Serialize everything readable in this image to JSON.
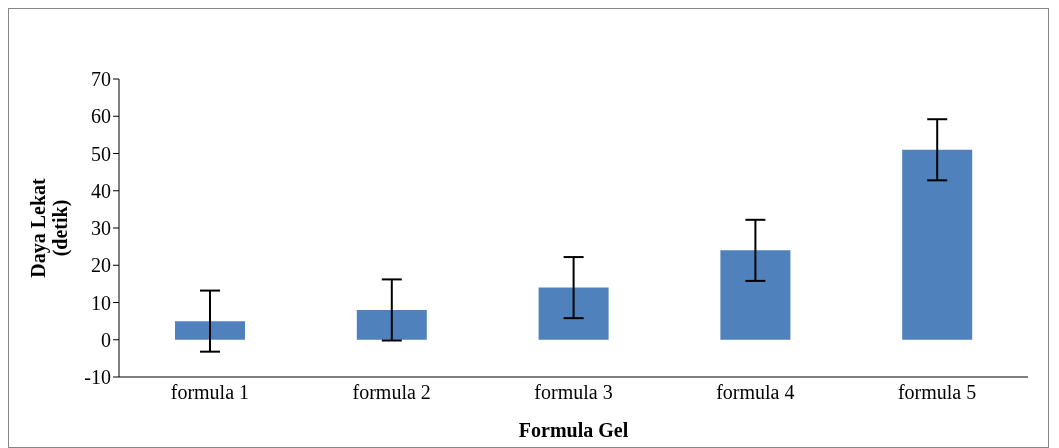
{
  "chart_data": {
    "type": "bar",
    "xlabel": "Formula Gel",
    "ylabel": "Daya Lekat (detik)",
    "categories": [
      "formula 1",
      "formula 2",
      "formula 3",
      "formula 4",
      "formula 5"
    ],
    "values": [
      5,
      8,
      14,
      24,
      51
    ],
    "errors": [
      8.2,
      8.2,
      8.2,
      8.2,
      8.2
    ],
    "color": "#4f81bd",
    "ylim": [
      -10,
      70
    ],
    "yticks": [
      -10,
      0,
      10,
      20,
      30,
      40,
      50,
      60,
      70
    ],
    "grid": false,
    "legend": false
  }
}
